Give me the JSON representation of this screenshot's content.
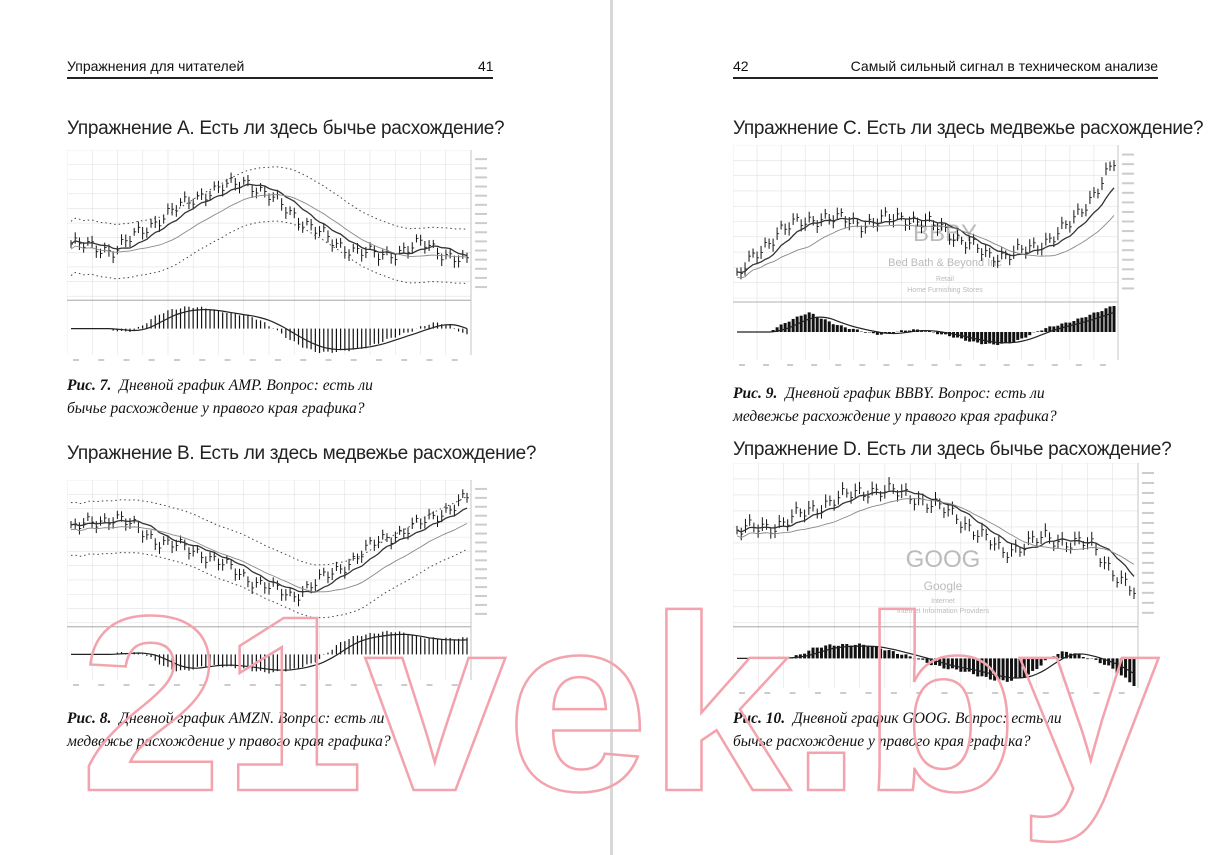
{
  "left_page": {
    "header": {
      "title": "Упражнения для читателей",
      "page_number": "41"
    },
    "exercises": [
      {
        "heading": "Упражнение A. Есть ли здесь бычье расхождение?",
        "caption_label": "Рис. 7.",
        "caption_lines": [
          "Дневной график AMP. Вопрос: есть ли",
          "бычье расхождение у правого края графика?"
        ]
      },
      {
        "heading": "Упражнение B. Есть ли здесь медвежье расхождение?",
        "caption_label": "Рис. 8.",
        "caption_lines": [
          "Дневной график AMZN. Вопрос: есть ли",
          "медвежье расхождение у правого края графика?"
        ]
      }
    ]
  },
  "right_page": {
    "header": {
      "title": "Самый сильный сигнал в техническом анализе",
      "page_number": "42"
    },
    "exercises": [
      {
        "heading": "Упражнение C. Есть ли здесь медвежье расхождение?",
        "caption_label": "Рис. 9.",
        "caption_lines": [
          "Дневной график BBBY. Вопрос: есть ли",
          "медвежье расхождение у правого края графика?"
        ],
        "chart_text": {
          "ticker": "BBBY",
          "company": "Bed Bath & Beyond Inc",
          "sector": "Retail",
          "industry": "Home Furnishing Stores"
        }
      },
      {
        "heading": "Упражнение D. Есть ли здесь бычье расхождение?",
        "caption_label": "Рис. 10.",
        "caption_lines": [
          "Дневной график GOOG. Вопрос: есть ли",
          "бычье расхождение у правого края графика?"
        ],
        "chart_text": {
          "ticker": "GOOG",
          "company": "Google",
          "sector": "Internet",
          "industry": "Internet Information Providers"
        }
      }
    ]
  },
  "watermark": "21vek.by"
}
